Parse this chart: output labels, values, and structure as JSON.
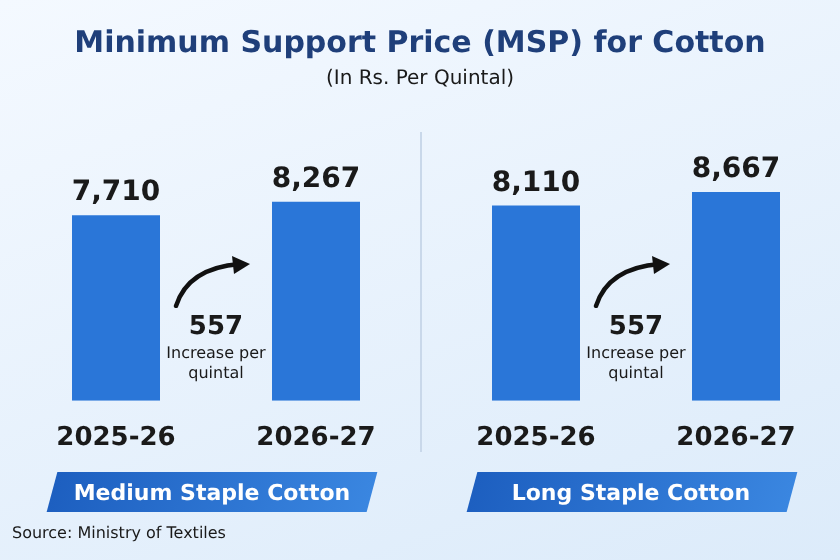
{
  "chart_data": [
    {
      "type": "bar",
      "title": "Minimum Support Price (MSP) for Cotton",
      "subtitle": "(In Rs. Per Quintal)",
      "xlabel": "Medium Staple Cotton",
      "categories": [
        "2025-26",
        "2026-27"
      ],
      "values": [
        7710,
        8267
      ],
      "value_labels": [
        "7,710",
        "8,267"
      ],
      "color": "#2a76d8",
      "tick_labels": "x",
      "annotations": [
        "557 Increase per quintal",
        "Source: Ministry of Textiles"
      ]
    },
    {
      "type": "bar",
      "xlabel": "Long Staple Cotton",
      "categories": [
        "2025-26",
        "2026-27"
      ],
      "values": [
        8110,
        8667
      ],
      "value_labels": [
        "8,110",
        "8,667"
      ],
      "color": "#2a76d8",
      "tick_labels": "x",
      "annotations": [
        "557 Increase per quintal"
      ]
    }
  ]
}
